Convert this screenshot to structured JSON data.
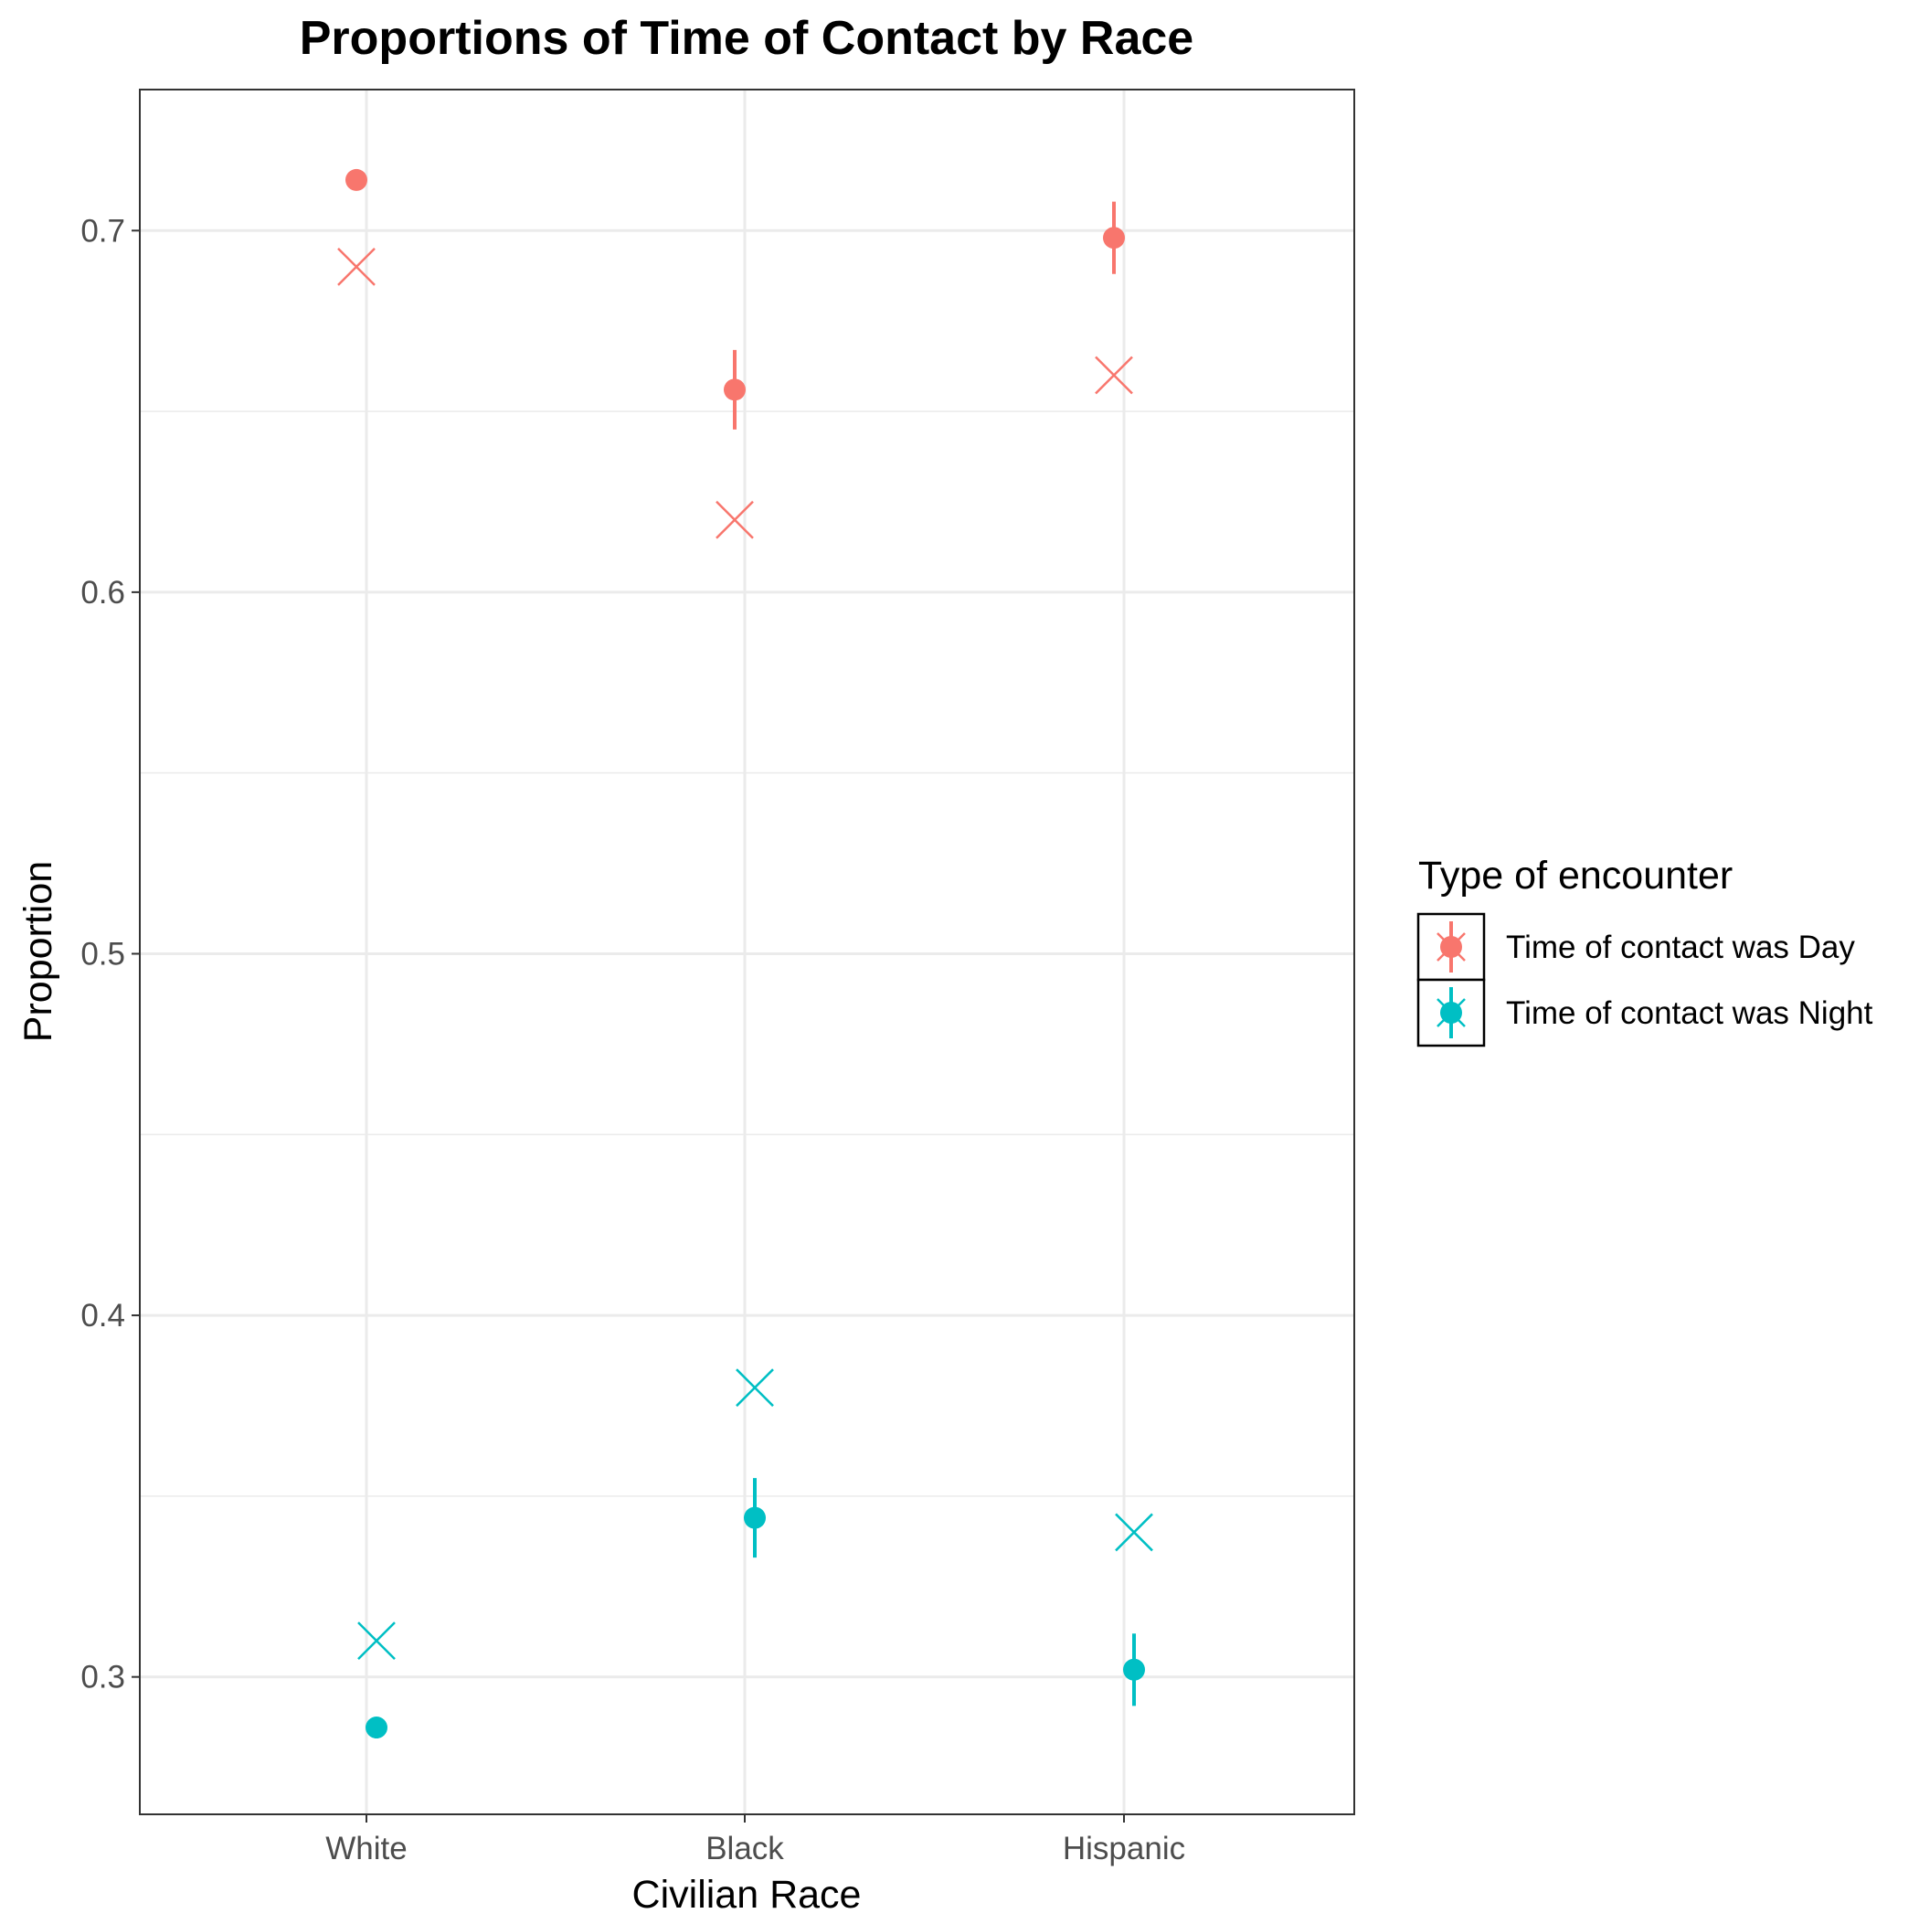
{
  "chart_data": {
    "type": "scatter",
    "title": "Proportions of Time of Contact by Race",
    "xlabel": "Civilian Race",
    "ylabel": "Proportion",
    "categories": [
      "White",
      "Black",
      "Hispanic"
    ],
    "ylim": [
      0.262,
      0.739
    ],
    "yticks": [
      0.3,
      0.4,
      0.5,
      0.6,
      0.7
    ],
    "ytick_labels": [
      "0.3",
      "0.4",
      "0.5",
      "0.6",
      "0.7"
    ],
    "grid": true,
    "legend": {
      "title": "Type of encounter",
      "position": "right",
      "entries": [
        "Time of contact was Day",
        "Time of contact was Night"
      ]
    },
    "marker_meaning": {
      "circle": "point estimate with error bar",
      "x": "comparison value"
    },
    "series": [
      {
        "name": "Time of contact was Day",
        "color": "#F8766D",
        "estimate": [
          0.714,
          0.656,
          0.698
        ],
        "error_low": [
          0.712,
          0.645,
          0.688
        ],
        "error_high": [
          0.717,
          0.667,
          0.708
        ],
        "x_marker": [
          0.69,
          0.62,
          0.66
        ]
      },
      {
        "name": "Time of contact was Night",
        "color": "#00BFC4",
        "estimate": [
          0.286,
          0.344,
          0.302
        ],
        "error_low": [
          0.283,
          0.333,
          0.292
        ],
        "error_high": [
          0.288,
          0.355,
          0.312
        ],
        "x_marker": [
          0.31,
          0.38,
          0.34
        ]
      }
    ]
  }
}
